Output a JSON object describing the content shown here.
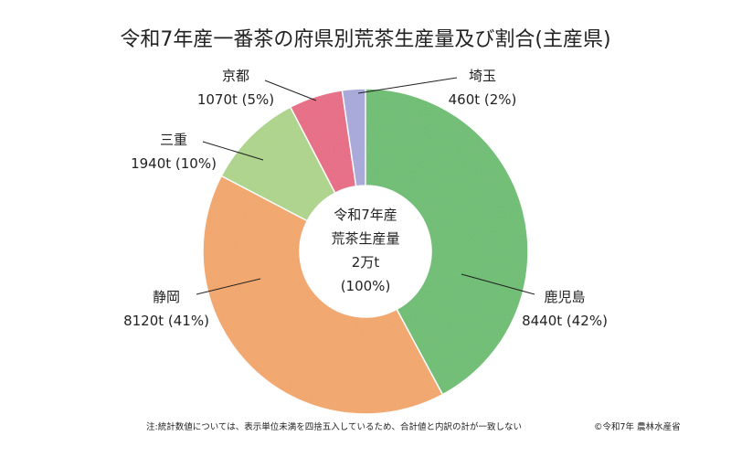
{
  "chart_data": {
    "type": "pie",
    "title": "令和7年産一番茶の府県別荒茶生産量及び割合(主産県)",
    "center": {
      "line1": "令和7年産",
      "line2": "荒茶生産量",
      "line3": "2万t",
      "line4": "(100%)"
    },
    "categories": [
      "鹿児島",
      "静岡",
      "三重",
      "京都",
      "埼玉"
    ],
    "values": [
      8440,
      8120,
      1940,
      1070,
      460
    ],
    "value_labels": [
      "8440t (42%)",
      "8120t (41%)",
      "1940t (10%)",
      "1070t (5%)",
      "460t (2%)"
    ],
    "percentages": [
      42,
      41,
      10,
      5,
      2
    ],
    "colors": [
      "#6dbf72",
      "#f4a76a",
      "#aed68b",
      "#e96b84",
      "#a9a9dc"
    ]
  },
  "footnote": "注:統計数値については、表示単位未満を四捨五入しているため、合計値と内訳の計が一致しない",
  "copyright": "©令和7年 農林水産省"
}
